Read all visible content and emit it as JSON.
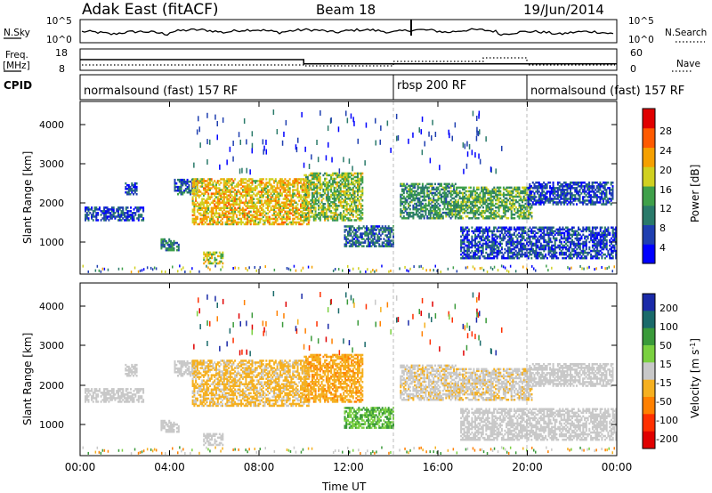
{
  "header": {
    "station": "Adak East (fitACF)",
    "beam": "Beam 18",
    "date": "19/Jun/2014"
  },
  "noise_panel": {
    "left_label": "N.Sky",
    "left_ticks": [
      "10^5",
      "10^0"
    ],
    "right_label": "N.Search",
    "right_ticks": [
      "10^5",
      "10^0"
    ]
  },
  "freq_panel": {
    "left_label_line1": "Freq.",
    "left_label_line2": "[MHz]",
    "left_ticks": [
      "18",
      "8"
    ],
    "right_label": "Nave",
    "right_ticks": [
      "60",
      "0"
    ]
  },
  "cpid_panel": {
    "label": "CPID",
    "segments": [
      {
        "text": "normalsound (fast) 157 RF",
        "start": 0,
        "end": 14
      },
      {
        "text": "rbsp 200 RF",
        "start": 14,
        "end": 20
      },
      {
        "text": "normalsound (fast) 157 RF",
        "start": 20,
        "end": 24
      }
    ]
  },
  "x_axis": {
    "label": "Time UT",
    "ticks": [
      "00:00",
      "04:00",
      "08:00",
      "12:00",
      "16:00",
      "20:00",
      "00:00"
    ]
  },
  "power_panel": {
    "ylabel": "Slant Range [km]",
    "yticks": [
      "1000",
      "2000",
      "3000",
      "4000"
    ],
    "colorbar_label": "Power [dB]",
    "colorbar_ticks": [
      "4",
      "8",
      "12",
      "16",
      "20",
      "24",
      "28"
    ],
    "colors": [
      "#0000ff",
      "#1f3fb0",
      "#2a7a6a",
      "#3fa04a",
      "#d0d020",
      "#f5a000",
      "#ff5a00",
      "#e00000"
    ]
  },
  "velocity_panel": {
    "ylabel": "Slant Range [km]",
    "yticks": [
      "1000",
      "2000",
      "3000",
      "4000"
    ],
    "colorbar_label": "Velocity [m s",
    "colorbar_label_sup": "-1",
    "colorbar_label_end": "]",
    "colorbar_ticks": [
      "200",
      "100",
      "50",
      "15",
      "-15",
      "-50",
      "-100",
      "-200"
    ],
    "colors": [
      "#1a2aa8",
      "#1a6a6a",
      "#3a9a3a",
      "#7ad040",
      "#c8c8c8",
      "#f5b020",
      "#ff8000",
      "#ff3000",
      "#e00000"
    ]
  },
  "chart_data": {
    "type": "heatmap",
    "x_range_hours": [
      0,
      24
    ],
    "y_range_km": [
      180,
      4500
    ],
    "freq_mhz": [
      {
        "start": 0,
        "end": 10,
        "value": 13
      },
      {
        "start": 10,
        "end": 24,
        "value": 11
      }
    ],
    "echo_regions": [
      {
        "t0": 0.2,
        "t1": 2.8,
        "r0": 1500,
        "r1": 1850,
        "power": 6,
        "velocity": -5
      },
      {
        "t0": 2.0,
        "t1": 2.5,
        "r0": 2150,
        "r1": 2450,
        "power": 6,
        "velocity": -5
      },
      {
        "t0": 4.2,
        "t1": 5.2,
        "r0": 2150,
        "r1": 2550,
        "power": 8,
        "velocity": -5
      },
      {
        "t0": 5.0,
        "t1": 10.2,
        "r0": 1400,
        "r1": 2550,
        "power": 20,
        "velocity": -20
      },
      {
        "t0": 10.0,
        "t1": 12.6,
        "r0": 1500,
        "r1": 2700,
        "power": 16,
        "velocity": -30
      },
      {
        "t0": 3.6,
        "t1": 4.4,
        "r0": 750,
        "r1": 1050,
        "power": 10,
        "velocity": -5
      },
      {
        "t0": 5.5,
        "t1": 6.4,
        "r0": 420,
        "r1": 720,
        "power": 18,
        "velocity": -5
      },
      {
        "t0": 11.8,
        "t1": 14.0,
        "r0": 850,
        "r1": 1350,
        "power": 8,
        "velocity": 30
      },
      {
        "t0": 14.3,
        "t1": 16.8,
        "r0": 1550,
        "r1": 2450,
        "power": 12,
        "velocity": -10
      },
      {
        "t0": 16.8,
        "t1": 20.2,
        "r0": 1550,
        "r1": 2350,
        "power": 14,
        "velocity": -10
      },
      {
        "t0": 17.0,
        "t1": 24.0,
        "r0": 550,
        "r1": 1350,
        "power": 6,
        "velocity": -5
      },
      {
        "t0": 20.0,
        "t1": 23.8,
        "r0": 1900,
        "r1": 2450,
        "power": 6,
        "velocity": -5
      }
    ]
  }
}
